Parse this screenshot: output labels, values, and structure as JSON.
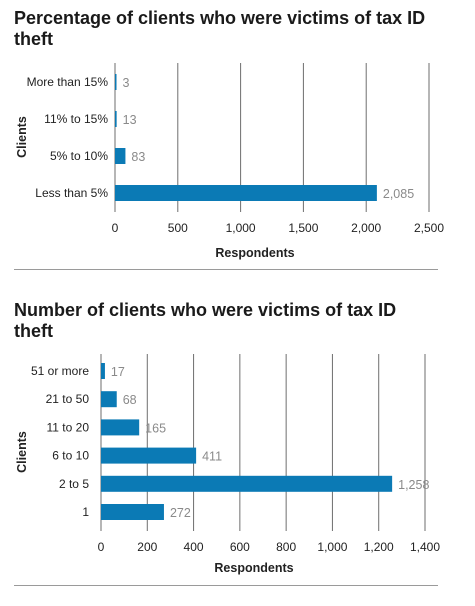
{
  "colors": {
    "bar": "#0b7ab5",
    "grid": "#6e6e6e",
    "value_label": "#8a8a8a",
    "text": "#222222"
  },
  "chart_data": [
    {
      "type": "bar",
      "orientation": "horizontal",
      "title": "Percentage of clients who were victims of tax ID theft",
      "xlabel": "Respondents",
      "ylabel": "Clients",
      "categories": [
        "More than 15%",
        "11% to 15%",
        "5% to 10%",
        "Less than 5%"
      ],
      "values": [
        3,
        13,
        83,
        2085
      ],
      "value_labels": [
        "3",
        "13",
        "83",
        "2,085"
      ],
      "xlim": [
        0,
        2500
      ],
      "xticks": [
        0,
        500,
        1000,
        1500,
        2000,
        2500
      ],
      "xtick_labels": [
        "0",
        "500",
        "1,000",
        "1,500",
        "2,000",
        "2,500"
      ],
      "grid": "vertical"
    },
    {
      "type": "bar",
      "orientation": "horizontal",
      "title": "Number of clients who were victims of tax ID theft",
      "xlabel": "Respondents",
      "ylabel": "Clients",
      "categories": [
        "51 or more",
        "21 to 50",
        "11 to 20",
        "6 to 10",
        "2 to 5",
        "1"
      ],
      "values": [
        17,
        68,
        165,
        411,
        1258,
        272
      ],
      "value_labels": [
        "17",
        "68",
        "165",
        "411",
        "1,258",
        "272"
      ],
      "xlim": [
        0,
        1400
      ],
      "xticks": [
        0,
        200,
        400,
        600,
        800,
        1000,
        1200,
        1400
      ],
      "xtick_labels": [
        "0",
        "200",
        "400",
        "600",
        "800",
        "1,000",
        "1,200",
        "1,400"
      ],
      "grid": "vertical"
    }
  ]
}
